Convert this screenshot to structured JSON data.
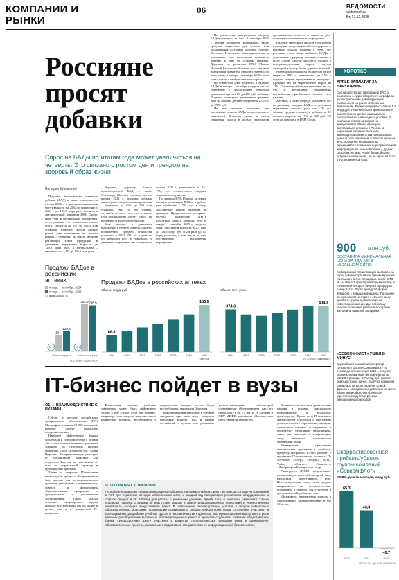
{
  "header": {
    "section": "КОМПАНИИ И РЫНКИ",
    "page": "06",
    "brand": "ВЕДОМОСТИ",
    "site": "vedomosti.ru",
    "date": "Вт, 17.12.2025"
  },
  "article1": {
    "headline": "Россияне просят добавки",
    "lead": "Спрос на БАДы по итогам года может увеличиться на четверть. Это связано с ростом цен и трендом на здоровый образ жизни",
    "author": "Валерия Кузьменко",
    "body": [
      "Продажи биологически активных добавок (БАД) к пище в аптеках по итогам 2025 г. в денежном выражении могут вырасти на 25% по сравнению с 2024 г. до 183,5 млрд руб., оценили в аналитической компании DSM Group. При этом в натуральном выражении, по ее данным, этот показатель, скорее всего, снизится на 1% до 404,3 млн упаковок. Впрочем, другие данные рынок уже показывает по итогам января – сентября: за девять месяцев реализация такой продукции в денежном выражении выросла до 129,8 млрд руб., в натуральном – снизилась на 2,4% до 295,5 млн упак.",
      "Впрочем, директор Союза производителей БАД к пище Александр Жестков считает, что по итогам 2025 г. продажи добавок вырастут и в натуральном выражении – примерно на 11% до 500 млн упаковок. Это, по его словам, случится за счет того, что в конце года традиционно растет спрос на витамины и иммуномодуляторы.",
      "Рост продаж в денежном выражении в первую очередь связан с повышением средней стоимости упаковки: в 2022–2024 гг. в деньгах он превышал рост в упаковках. В денежном выражении мы ожидаем по итогам 2025 г. увеличения на 15–17%, что соответствует средним темпам последних лет.",
      "По данным RNC Pharma, за девять месяцев реализация БАДов в рублях уже прибавила 17% год к году. Абсолютные цифры компании не приводят. Представитель интернет-ресурса маркировки ЦРПТ («Честный знак») добавил, что за январь – сентябрь 2025 г. продажи такой продукции выросли в 2,5 раза до 146,8 млрд руб. и 2,8 раза до 1,1 млрд упаковок, в том числе за счет постепенного расширения маркировки.",
      "На увеличение натурального оборота БАДов повлияло то, что с 1 сентября 2025 г. аптеки разрешено выписывать такие средства пациентам для лечения или поддержания состояния здоровья, считает Жестков. Изменение законодательства в отношении этих комплексов позволило доверие к ним со стороны граждан. Директор по развитию RNC Pharma Николай Беспалов объясняет рост объемов реализации развитием онлайн-сегмента: по его словам, в январе – сентябре 2025 г. этот канал показал наибольшие темпы роста.",
      "По статистике «Чек индекса», в лидерах БАДы в январе – октябре подорожали по сравнению с аналогичным периодом прошлого года на 21% до 405 руб. за банку. В целом отмечается увеличение среднего чека на лечение детей в среднем на 10–15% до 2900 руб.",
      "Не все эксперты согласны, что увеличение чека на БАДы всегда связано с инфляцией. Беспалов указал на тренд смещения спроса в пользу препаратов премиального сегмента, а также на рост популярности комплексных продуктов.",
      "Наличие свободных средств у населения и растущая тенденция к заботе о здоровье в крупных городах привели к тому, что россияне стали чаще выбирать БАДы в дополнение к рациону питания, считают в DSM Group. Другие эксперты говорят о перераспределении спроса внутри категорий в пользу более дорогих позиций.",
      "Реализация добавок на Wildberries за три квартала 2025 г. увеличилась на 72% в штуках, уверяет представитель площадки. Средний чек на маркетплейсе вырос на 13%. Он также обращает внимание на то, что в натуральных выражениях потребители приобретают больше, чем раньше.",
      "Жестков, в свою очередь, указывает, что на динамику продаж БАДов в денежном выражении повлиял рост цен. По его словам, средняя стоимость добавок за 10 месяцев выросла на 17% до 368 руб. Об этом же говорят и в DSM Group."
    ]
  },
  "chart_small": {
    "title": "Продажи БАДов в российских аптеках",
    "legend": [
      "январь – сентябрь 2024",
      "январь – сентябрь 2025",
      "изменение, %"
    ],
    "colors": [
      "#b9bdbd",
      "#1f6f73",
      "#1f6f73"
    ],
    "ylim": [
      0,
      320
    ],
    "groups": [
      {
        "label": "объем, млрд руб.",
        "values": [
          104,
          129.8
        ],
        "value_labels": [
          "104",
          "129,8"
        ],
        "change": 24.9,
        "change_label": "24,9"
      },
      {
        "label": "объем, млн упак.",
        "values": [
          302.9,
          295.5
        ],
        "value_labels": [
          "302,9",
          "295,5"
        ],
        "change": -2.4,
        "change_label": "–2,4"
      }
    ],
    "source": "ИСТОЧНИК: DSM GROUP"
  },
  "chart_main": {
    "title": "Продажи БАДов в российских аптеках",
    "forecast_label": "прогноз",
    "source": "ИСТОЧНИК: DSM GROUP",
    "categories": [
      "2019",
      "2020",
      "2021",
      "2022",
      "2023",
      "2024",
      "2025"
    ],
    "colors": [
      "#1f6f73",
      "#9cc3c2"
    ],
    "panels": [
      {
        "unit": "объем, млрд руб.",
        "ylim": [
          0,
          200
        ],
        "values": [
          66.8,
          82,
          96,
          108,
          126,
          147,
          183.5
        ],
        "value_labels": [
          "66,8",
          null,
          null,
          null,
          null,
          null,
          "183,5"
        ]
      },
      {
        "unit": "объем, млн упак.",
        "ylim": [
          0,
          450
        ],
        "values": [
          374.3,
          330,
          318,
          345,
          372,
          408,
          404.3
        ],
        "value_labels": [
          "374,3",
          null,
          null,
          null,
          null,
          null,
          "404,3"
        ]
      }
    ]
  },
  "article2": {
    "headline": "IT-бизнес пойдет в вузы",
    "rubric": "О1 → ВЗАИМОДЕЙСТВИЕ С ВУЗАМИ",
    "body": [
      "Сейчас в реестре российского программного обеспечения (ПО) Минцифры значится 18 000 компаний, которые смогут проходить перерегистрацию.",
      "Наиболее эффективные формы поддержки и сотрудничества с вузами уже стали «классическими», рассказал директор по персоналу группы компаний «Код Безопасности» Дарья Цирулева. В первую очередь речь идет об организации практики для студентов. Так, вы бы пригласили не всех на формальный характер в прохождении практики.",
      "Также о сторонах IT-компании можно давать доступ и оборудования к базе данных для исследовательских проектов, участвовать в академических советах и формировать образовательные программы с профильными и различными дисциплинами. Такой подход позволяет сформировать кадры, которые востребованы как на рынке в целом, так и в конкретной IT-компании.",
      "Финансовая помощь учебным заведениям может быть эффективна только в том случае, если она целевая: например, если средства выделяются на конкретные проекты, исследования и направления, которые потом будут востребованы, заключила Цирулева.",
      "Компании финансирующие в учебные заведения, при этом могут получать налоговые вычеты. Так, в рамках соглашений с вузами они развивают учебно-прикладные лабораторий современным оборудованием, как это происходит в МГТУ им. Н. Э. Баумана и НИУ МИФИ, рассказали «Ведомостям» представители этих вузов.",
      "Возможность получать практические навыки и условия, максимально приближенные к реальному производству. Кроме того, IT-компании финансируют стипендии и программы дополнительного образования, проводят совместные научные исследования и организуют отраслевые мероприятия, такие как хакатоны и конференции, чаще становятся постоянными партнерами вузов.",
      "Университеты привлекают специалистов практиков к учебному процессу. Например, ИТМО работает с крупными IT-компаниями страны и IT-лоучеров: «Сбер», «Яндекс», МТС, Yadro, «Авито», «Самолет», «Лаборатория Касперского» и др.",
      "Университет ИТМО предоставляет компаниям доступ к лабораторной базе, рассказала представитель вуза. Интеллектуальная часть этих средств направляется на технологические программы в грантах для студентов и преподавателей, добавляет она.",
      "«Возможно» направления запросы в Минобрнауки, Минпросвещения и тот 30 вузов."
    ],
    "box_title": "ЧТО ГОВОРЯТ КОМПАНИИ",
    "box_text": "ГК Softline продвигает специализированные объекты, например лабораторию Ган Алнсон, открытую компанией в РУТ для отработки методов кибербезопасности, и каждый год лаборатории российским оборудованием и софтом (входят в ГК Softline) для работы с учебными данными. Кроме того, в компании оказывают Т-Банк подписал подписи с вузами по подготовке кадров в сфере информационных технологий и искусственного интеллекта, сообщил представитель банка. В соглашениях зафиксированы условия о запуске совместных образовательных программ, организации стажировок и работы лабораторий. Наши сотрудники участвуют в преподавании, разработке учебных курсов и наставничестве студентов. Эксперты компании выступают в роли научных руководителей выпускных квалификационных работ и проектов студентов, отмечает представитель банка. «Инфосистемы Джет» участвует в развитии технологических программ вузов и финансирует образовательные проекты, связанные с подготовкой специалистов по информационной безопасности."
  },
  "sidebar": {
    "label": "КОРОТКО",
    "items": [
      {
        "headline": "APPLE ЗАПЛАТИТ ЗА НАРУШЕНИЕ",
        "text": "Суд удовлетворил требования ФАС о взыскании с Apple оборотного штрафа за злоупотребление доминирующим положением на рынке мобильных приложений. Размер штрафа составил 1,2 млрд руб. Решение было принято после рассмотрения дела о навязывании разработчикам невыгодных условий. В компании ответа на запрос не предоставили. Ранее Apple уже выплачивала штрафы в России за нарушения антимонопольного законодательства и отказ локализовать данные пользователей. Согласно данным ФАС, компания неоднократно ограничивала возможность разработчиков информировать пользователей о других способах оплаты. Apple была обязана устранить нарушения, но не сделала этого в установленный срок."
      },
      {
        "number": "900",
        "unit": "млн руб.",
        "headline": "СОСТАВИЛА МИНИМАЛЬНАЯ ЦЕНА ЗА ЗДАНИЕ В «БОЛЬШОМ СИТИ»",
        "text": "Арбитражный управляющий выставил на торги административное здание в районе «Большого Сити» площадью около 5000 кв. м. Объект принадлежал девелоперу, в отношении которого ведется процедура банкротства. Торги пройдут в форме аукциона с повышением цены. По оценке консультантов, интерес к объекту могут проявить крупные девелоперы и инвестиционные фонды, поскольку участок позволяет реализовать проект жилой или офисной застройки."
      },
      {
        "headline": "«СОВКОМФЛОТ» УШЕЛ В МИНУС",
        "text": "Крупнейший российский оператор танкерного флота «Совкомфлот» по итогам девяти месяцев 2025 г. получил скорректированный чистый убыток по МСФО в размере 0,7 млрд руб. против прибыли годом ранее. Выручка компании снизилась на фоне падения ставок фрахта и санкционного давления на флот. В компании объясняют результат укреплением рубля и ростом операционных расходов."
      }
    ],
    "chart": {
      "title": "Скорректированная прибыль/убыток группы компаний «Совкомфлот»",
      "subtitle": "МСФО, девять месяцев, млрд руб.",
      "categories": [
        "2023",
        "2024",
        "2025"
      ],
      "values": [
        65.3,
        43.3,
        -0.7
      ],
      "value_labels": [
        "65,3",
        "43,3",
        "–0,7"
      ],
      "colors": [
        "#1f6f73",
        "#9cc3c2"
      ],
      "ylim": [
        -8,
        70
      ],
      "source": "ИСТОЧНИК: ДАННЫЕ КОМПАНИИ"
    }
  }
}
